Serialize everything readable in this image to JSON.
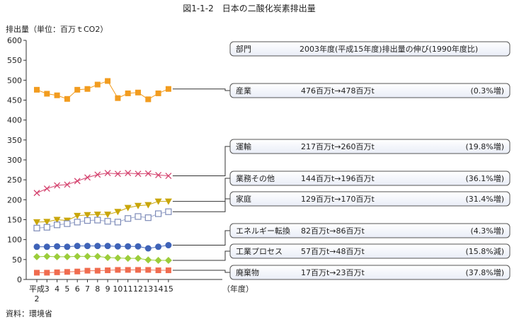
{
  "figure": {
    "title": "図1-1-2　日本の二酸化炭素排出量",
    "source": "資料：環境省"
  },
  "chart_data": {
    "type": "line",
    "title": "図1-1-2　日本の二酸化炭素排出量",
    "ylabel": "排出量（単位：百万ｔCO2）",
    "xlabel": "（年度）",
    "ylim": [
      0,
      600
    ],
    "yticks": [
      0,
      50,
      100,
      150,
      200,
      250,
      300,
      350,
      400,
      450,
      500,
      550,
      600
    ],
    "grid": false,
    "legend": "right",
    "categories": [
      "平成2",
      "3",
      "4",
      "5",
      "6",
      "7",
      "8",
      "9",
      "10",
      "11",
      "12",
      "13",
      "14",
      "15"
    ],
    "category_labels": [
      [
        "平成",
        "2"
      ],
      [
        "3"
      ],
      [
        "4"
      ],
      [
        "5"
      ],
      [
        "6"
      ],
      [
        "7"
      ],
      [
        "8"
      ],
      [
        "9"
      ],
      [
        "10"
      ],
      [
        "11"
      ],
      [
        "12"
      ],
      [
        "13"
      ],
      [
        "14"
      ],
      [
        "15"
      ]
    ],
    "header": {
      "sector": "部門",
      "change": "2003年度(平成15年度)排出量の伸び(1990年度比)"
    },
    "series": [
      {
        "name": "産業",
        "change": "476百万t→478百万t",
        "pct": "(0.3%増)",
        "values": [
          476,
          466,
          462,
          453,
          476,
          478,
          489,
          498,
          455,
          467,
          469,
          452,
          467,
          478
        ],
        "color": "#f29c1f",
        "line_color": "#f29c1f",
        "marker": "square"
      },
      {
        "name": "運輸",
        "change": "217百万t→260百万t",
        "pct": "(19.8%増)",
        "values": [
          217,
          228,
          236,
          238,
          247,
          256,
          263,
          267,
          265,
          267,
          265,
          266,
          262,
          260
        ],
        "color": "#d4416d",
        "line_color": "#d4416d",
        "marker": "x"
      },
      {
        "name": "業務その他",
        "change": "144百万t→196百万t",
        "pct": "(36.1%増)",
        "values": [
          144,
          145,
          150,
          148,
          160,
          162,
          163,
          163,
          170,
          180,
          185,
          187,
          196,
          196
        ],
        "color": "#c9a60a",
        "line_color": "#c9a60a",
        "marker": "triangle-down"
      },
      {
        "name": "家庭",
        "change": "129百万t→170百万t",
        "pct": "(31.4%増)",
        "values": [
          129,
          131,
          137,
          140,
          144,
          148,
          149,
          146,
          144,
          153,
          158,
          155,
          165,
          170
        ],
        "color": "#7d8bb8",
        "line_color": "#9aa6cc",
        "marker": "square-open"
      },
      {
        "name": "エネルギー転換",
        "change": "82百万t→86百万t",
        "pct": "(4.3%増)",
        "values": [
          82,
          82,
          83,
          82,
          84,
          84,
          84,
          84,
          83,
          83,
          83,
          78,
          82,
          86
        ],
        "color": "#3f63b8",
        "line_color": "#3f63b8",
        "marker": "circle"
      },
      {
        "name": "工業プロセス",
        "change": "57百万t→48百万t",
        "pct": "(15.8%減)",
        "values": [
          57,
          58,
          57,
          57,
          58,
          58,
          58,
          55,
          54,
          53,
          53,
          49,
          48,
          48
        ],
        "color": "#9ccd3a",
        "line_color": "#9ccd3a",
        "marker": "diamond"
      },
      {
        "name": "廃棄物",
        "change": "17百万t→23百万t",
        "pct": "(37.8%増)",
        "values": [
          17,
          17,
          18,
          19,
          20,
          22,
          22,
          23,
          24,
          24,
          24,
          24,
          23,
          23
        ],
        "color": "#f06c4f",
        "line_color": "#f06c4f",
        "marker": "square"
      }
    ]
  }
}
